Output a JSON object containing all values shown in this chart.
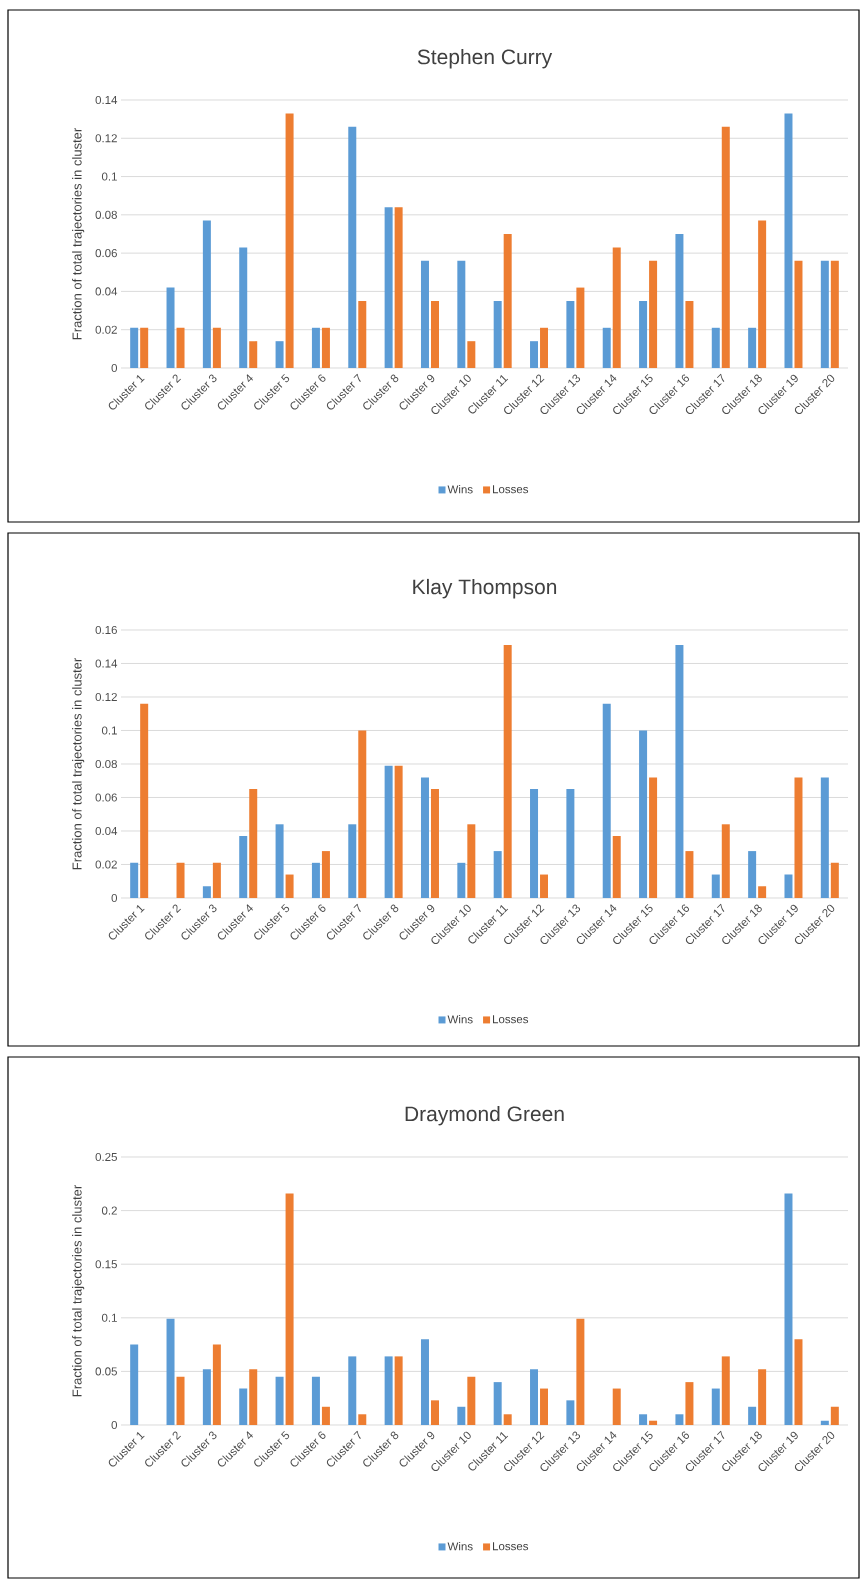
{
  "chart_data": [
    {
      "type": "bar",
      "title": "Stephen Curry",
      "ylabel": "Fraction of total trajectories in cluster",
      "categories": [
        "Cluster 1",
        "Cluster 2",
        "Cluster 3",
        "Cluster 4",
        "Cluster 5",
        "Cluster 6",
        "Cluster 7",
        "Cluster 8",
        "Cluster 9",
        "Cluster 10",
        "Cluster 11",
        "Cluster 12",
        "Cluster 13",
        "Cluster 14",
        "Cluster 15",
        "Cluster 16",
        "Cluster 17",
        "Cluster 18",
        "Cluster 19",
        "Cluster 20"
      ],
      "series": [
        {
          "name": "Wins",
          "color": "#5b9bd5",
          "values": [
            0.021,
            0.042,
            0.077,
            0.063,
            0.014,
            0.021,
            0.126,
            0.084,
            0.056,
            0.056,
            0.035,
            0.014,
            0.035,
            0.021,
            0.035,
            0.07,
            0.021,
            0.021,
            0.133,
            0.056
          ]
        },
        {
          "name": "Losses",
          "color": "#ed7d31",
          "values": [
            0.021,
            0.021,
            0.021,
            0.014,
            0.133,
            0.021,
            0.035,
            0.084,
            0.035,
            0.014,
            0.07,
            0.021,
            0.042,
            0.063,
            0.056,
            0.035,
            0.126,
            0.077,
            0.056,
            0.056
          ]
        }
      ],
      "ylim": [
        0,
        0.14
      ],
      "yticks": [
        0,
        0.02,
        0.04,
        0.06,
        0.08,
        0.1,
        0.12,
        0.14
      ],
      "grid": "y",
      "legend": "bottom"
    },
    {
      "type": "bar",
      "title": "Klay Thompson",
      "ylabel": "Fraction of total trajectories in cluster",
      "categories": [
        "Cluster 1",
        "Cluster 2",
        "Cluster 3",
        "Cluster 4",
        "Cluster 5",
        "Cluster 6",
        "Cluster 7",
        "Cluster 8",
        "Cluster 9",
        "Cluster 10",
        "Cluster 11",
        "Cluster 12",
        "Cluster 13",
        "Cluster 14",
        "Cluster 15",
        "Cluster 16",
        "Cluster 17",
        "Cluster 18",
        "Cluster 19",
        "Cluster 20"
      ],
      "series": [
        {
          "name": "Wins",
          "color": "#5b9bd5",
          "values": [
            0.021,
            0,
            0.007,
            0.037,
            0.044,
            0.021,
            0.044,
            0.079,
            0.072,
            0.021,
            0.028,
            0.065,
            0.065,
            0.116,
            0.1,
            0.151,
            0.014,
            0.028,
            0.014,
            0.072
          ]
        },
        {
          "name": "Losses",
          "color": "#ed7d31",
          "values": [
            0.116,
            0.021,
            0.021,
            0.065,
            0.014,
            0.028,
            0.1,
            0.079,
            0.065,
            0.044,
            0.151,
            0.014,
            0,
            0.037,
            0.072,
            0.028,
            0.044,
            0.007,
            0.072,
            0.021
          ]
        }
      ],
      "ylim": [
        0,
        0.16
      ],
      "yticks": [
        0,
        0.02,
        0.04,
        0.06,
        0.08,
        0.1,
        0.12,
        0.14,
        0.16
      ],
      "grid": "y",
      "legend": "bottom"
    },
    {
      "type": "bar",
      "title": "Draymond Green",
      "ylabel": "Fraction of total trajectories in cluster",
      "categories": [
        "Cluster 1",
        "Cluster 2",
        "Cluster 3",
        "Cluster 4",
        "Cluster 5",
        "Cluster 6",
        "Cluster 7",
        "Cluster 8",
        "Cluster 9",
        "Cluster 10",
        "Cluster 11",
        "Cluster 12",
        "Cluster 13",
        "Cluster 14",
        "Cluster 15",
        "Cluster 16",
        "Cluster 17",
        "Cluster 18",
        "Cluster 19",
        "Cluster 20"
      ],
      "series": [
        {
          "name": "Wins",
          "color": "#5b9bd5",
          "values": [
            0.075,
            0.099,
            0.052,
            0.034,
            0.045,
            0.045,
            0.064,
            0.064,
            0.08,
            0.017,
            0.04,
            0.052,
            0.023,
            0,
            0.01,
            0.01,
            0.034,
            0.017,
            0.216,
            0.004
          ]
        },
        {
          "name": "Losses",
          "color": "#ed7d31",
          "values": [
            0,
            0.045,
            0.075,
            0.052,
            0.216,
            0.017,
            0.01,
            0.064,
            0.023,
            0.045,
            0.01,
            0.034,
            0.099,
            0.034,
            0.004,
            0.04,
            0.064,
            0.052,
            0.08,
            0.017
          ]
        }
      ],
      "ylim": [
        0,
        0.25
      ],
      "yticks": [
        0,
        0.05,
        0.1,
        0.15,
        0.2,
        0.25
      ],
      "grid": "y",
      "legend": "bottom"
    }
  ]
}
